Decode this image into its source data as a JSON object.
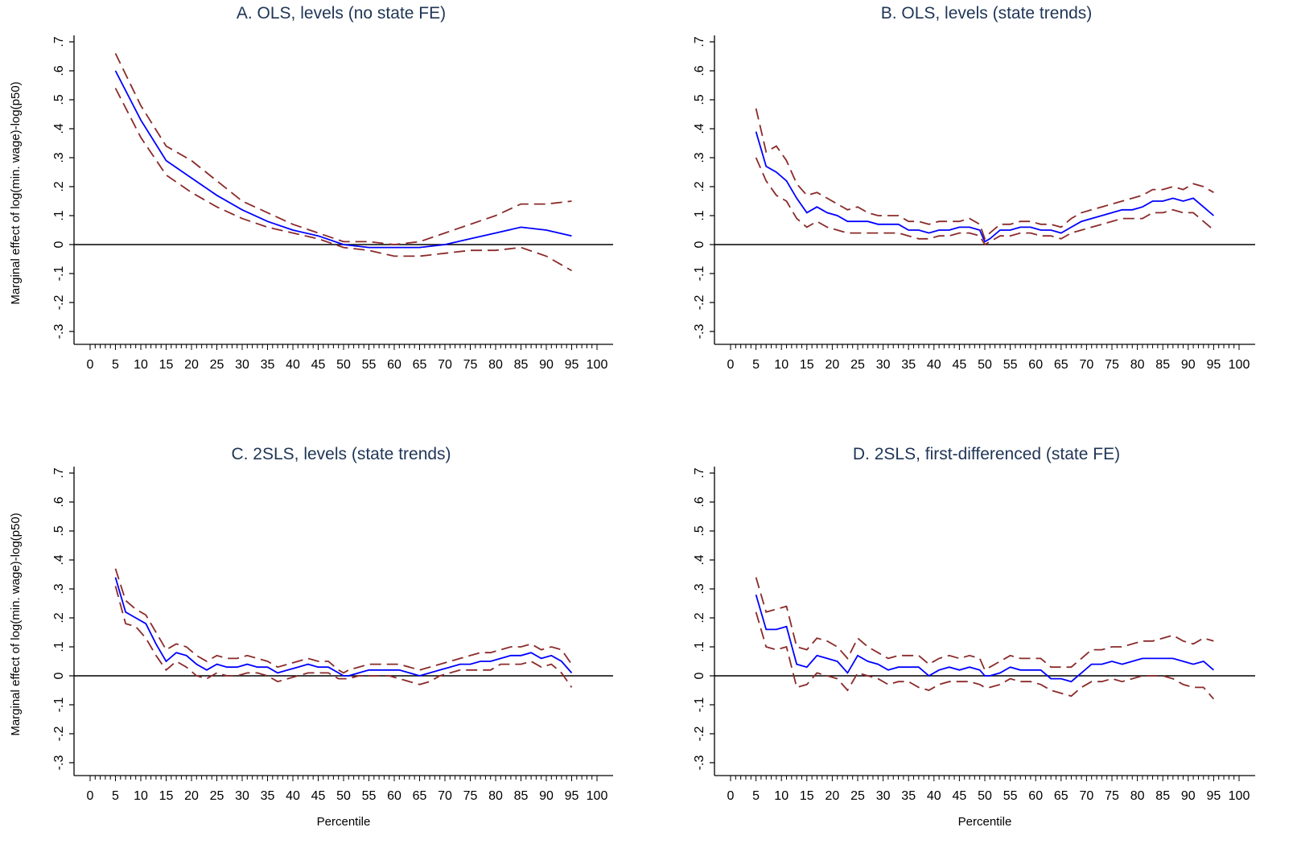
{
  "colors": {
    "estimate": "#0000ff",
    "ci": "#8b2a2a",
    "axis": "#000000",
    "title": "#1f3556"
  },
  "chart_data": [
    {
      "type": "line",
      "title": "A. OLS, levels (no state FE)",
      "xlabel": "",
      "ylabel": "Marginal effect of log(min. wage)-log(p50)",
      "xlim": [
        0,
        100
      ],
      "ylim": [
        -0.3,
        0.7
      ],
      "xtick_labels": [
        "0",
        "5",
        "10",
        "15",
        "20",
        "25",
        "30",
        "35",
        "40",
        "45",
        "50",
        "55",
        "60",
        "65",
        "70",
        "75",
        "80",
        "85",
        "90",
        "95",
        "100"
      ],
      "ytick_labels": [
        "-.3",
        "-.2",
        "-.1",
        "0",
        ".1",
        ".2",
        ".3",
        ".4",
        ".5",
        ".6",
        ".7"
      ],
      "reference_line": 0,
      "x": [
        5,
        10,
        15,
        20,
        25,
        30,
        35,
        40,
        45,
        50,
        55,
        60,
        65,
        70,
        75,
        80,
        85,
        90,
        95
      ],
      "series": [
        {
          "role": "estimate",
          "values": [
            0.6,
            0.43,
            0.29,
            0.23,
            0.17,
            0.12,
            0.08,
            0.05,
            0.03,
            0.0,
            -0.01,
            -0.01,
            -0.01,
            0.0,
            0.02,
            0.04,
            0.06,
            0.05,
            0.03
          ]
        },
        {
          "role": "upper",
          "values": [
            0.66,
            0.48,
            0.34,
            0.29,
            0.22,
            0.15,
            0.11,
            0.07,
            0.04,
            0.01,
            0.01,
            0.0,
            0.01,
            0.04,
            0.07,
            0.1,
            0.14,
            0.14,
            0.15
          ]
        },
        {
          "role": "lower",
          "values": [
            0.54,
            0.37,
            0.24,
            0.18,
            0.13,
            0.09,
            0.06,
            0.04,
            0.02,
            -0.01,
            -0.02,
            -0.04,
            -0.04,
            -0.03,
            -0.02,
            -0.02,
            -0.01,
            -0.04,
            -0.09
          ]
        }
      ]
    },
    {
      "type": "line",
      "title": "B. OLS, levels (state trends)",
      "xlabel": "",
      "ylabel": "",
      "xlim": [
        0,
        100
      ],
      "ylim": [
        -0.3,
        0.7
      ],
      "xtick_labels": [
        "0",
        "5",
        "10",
        "15",
        "20",
        "25",
        "30",
        "35",
        "40",
        "45",
        "50",
        "55",
        "60",
        "65",
        "70",
        "75",
        "80",
        "85",
        "90",
        "95",
        "100"
      ],
      "ytick_labels": [
        "-.3",
        "-.2",
        "-.1",
        "0",
        ".1",
        ".2",
        ".3",
        ".4",
        ".5",
        ".6",
        ".7"
      ],
      "reference_line": 0,
      "x": [
        5,
        7,
        9,
        11,
        13,
        15,
        17,
        19,
        21,
        23,
        25,
        27,
        29,
        31,
        33,
        35,
        37,
        39,
        41,
        43,
        45,
        47,
        49,
        50,
        51,
        53,
        55,
        57,
        59,
        61,
        63,
        65,
        67,
        69,
        71,
        73,
        75,
        77,
        79,
        81,
        83,
        85,
        87,
        89,
        91,
        93,
        95
      ],
      "series": [
        {
          "role": "estimate",
          "values": [
            0.39,
            0.27,
            0.25,
            0.22,
            0.16,
            0.11,
            0.13,
            0.11,
            0.1,
            0.08,
            0.08,
            0.08,
            0.07,
            0.07,
            0.07,
            0.05,
            0.05,
            0.04,
            0.05,
            0.05,
            0.06,
            0.06,
            0.05,
            0.01,
            0.02,
            0.05,
            0.05,
            0.06,
            0.06,
            0.05,
            0.05,
            0.04,
            0.06,
            0.08,
            0.09,
            0.1,
            0.11,
            0.12,
            0.12,
            0.13,
            0.15,
            0.15,
            0.16,
            0.15,
            0.16,
            0.13,
            0.1
          ]
        },
        {
          "role": "upper",
          "values": [
            0.47,
            0.32,
            0.34,
            0.29,
            0.21,
            0.17,
            0.18,
            0.16,
            0.14,
            0.12,
            0.13,
            0.11,
            0.1,
            0.1,
            0.1,
            0.08,
            0.08,
            0.07,
            0.08,
            0.08,
            0.08,
            0.09,
            0.07,
            0.02,
            0.04,
            0.07,
            0.07,
            0.08,
            0.08,
            0.07,
            0.07,
            0.06,
            0.09,
            0.11,
            0.12,
            0.13,
            0.14,
            0.15,
            0.16,
            0.17,
            0.19,
            0.19,
            0.2,
            0.19,
            0.21,
            0.2,
            0.18
          ]
        },
        {
          "role": "lower",
          "values": [
            0.3,
            0.22,
            0.17,
            0.15,
            0.09,
            0.06,
            0.08,
            0.06,
            0.05,
            0.04,
            0.04,
            0.04,
            0.04,
            0.04,
            0.04,
            0.03,
            0.02,
            0.02,
            0.03,
            0.03,
            0.04,
            0.04,
            0.03,
            0.0,
            0.01,
            0.03,
            0.03,
            0.04,
            0.04,
            0.03,
            0.03,
            0.02,
            0.04,
            0.05,
            0.06,
            0.07,
            0.08,
            0.09,
            0.09,
            0.09,
            0.11,
            0.11,
            0.12,
            0.11,
            0.11,
            0.08,
            0.05
          ]
        }
      ]
    },
    {
      "type": "line",
      "title": "C. 2SLS, levels (state trends)",
      "xlabel": "Percentile",
      "ylabel": "Marginal effect of log(min. wage)-log(p50)",
      "xlim": [
        0,
        100
      ],
      "ylim": [
        -0.3,
        0.7
      ],
      "xtick_labels": [
        "0",
        "5",
        "10",
        "15",
        "20",
        "25",
        "30",
        "35",
        "40",
        "45",
        "50",
        "55",
        "60",
        "65",
        "70",
        "75",
        "80",
        "85",
        "90",
        "95",
        "100"
      ],
      "ytick_labels": [
        "-.3",
        "-.2",
        "-.1",
        "0",
        ".1",
        ".2",
        ".3",
        ".4",
        ".5",
        ".6",
        ".7"
      ],
      "reference_line": 0,
      "x": [
        5,
        7,
        9,
        11,
        13,
        15,
        17,
        19,
        21,
        23,
        25,
        27,
        29,
        31,
        33,
        35,
        37,
        39,
        41,
        43,
        45,
        47,
        49,
        50,
        51,
        53,
        55,
        57,
        59,
        61,
        63,
        65,
        67,
        69,
        71,
        73,
        75,
        77,
        79,
        81,
        83,
        85,
        87,
        89,
        91,
        93,
        95
      ],
      "series": [
        {
          "role": "estimate",
          "values": [
            0.34,
            0.22,
            0.2,
            0.18,
            0.11,
            0.05,
            0.08,
            0.07,
            0.04,
            0.02,
            0.04,
            0.03,
            0.03,
            0.04,
            0.03,
            0.03,
            0.01,
            0.02,
            0.03,
            0.04,
            0.03,
            0.03,
            0.01,
            0.0,
            0.0,
            0.01,
            0.02,
            0.02,
            0.02,
            0.02,
            0.01,
            0.0,
            0.01,
            0.02,
            0.03,
            0.04,
            0.04,
            0.05,
            0.05,
            0.06,
            0.07,
            0.07,
            0.08,
            0.06,
            0.07,
            0.05,
            0.01
          ]
        },
        {
          "role": "upper",
          "values": [
            0.37,
            0.26,
            0.23,
            0.21,
            0.15,
            0.09,
            0.11,
            0.1,
            0.07,
            0.05,
            0.07,
            0.06,
            0.06,
            0.07,
            0.06,
            0.05,
            0.03,
            0.04,
            0.05,
            0.06,
            0.05,
            0.05,
            0.02,
            0.01,
            0.02,
            0.03,
            0.04,
            0.04,
            0.04,
            0.04,
            0.03,
            0.02,
            0.03,
            0.04,
            0.05,
            0.06,
            0.07,
            0.08,
            0.08,
            0.09,
            0.1,
            0.1,
            0.11,
            0.09,
            0.1,
            0.09,
            0.04
          ]
        },
        {
          "role": "lower",
          "values": [
            0.31,
            0.18,
            0.17,
            0.13,
            0.07,
            0.02,
            0.05,
            0.03,
            0.0,
            -0.01,
            0.01,
            0.0,
            0.0,
            0.01,
            0.01,
            0.0,
            -0.02,
            -0.01,
            0.0,
            0.01,
            0.01,
            0.01,
            -0.01,
            -0.01,
            -0.01,
            0.0,
            0.0,
            0.0,
            0.0,
            -0.01,
            -0.02,
            -0.03,
            -0.02,
            0.0,
            0.01,
            0.02,
            0.02,
            0.02,
            0.02,
            0.04,
            0.04,
            0.04,
            0.05,
            0.03,
            0.04,
            0.01,
            -0.04
          ]
        }
      ]
    },
    {
      "type": "line",
      "title": "D. 2SLS, first-differenced (state FE)",
      "xlabel": "Percentile",
      "ylabel": "",
      "xlim": [
        0,
        100
      ],
      "ylim": [
        -0.3,
        0.7
      ],
      "xtick_labels": [
        "0",
        "5",
        "10",
        "15",
        "20",
        "25",
        "30",
        "35",
        "40",
        "45",
        "50",
        "55",
        "60",
        "65",
        "70",
        "75",
        "80",
        "85",
        "90",
        "95",
        "100"
      ],
      "ytick_labels": [
        "-.3",
        "-.2",
        "-.1",
        "0",
        ".1",
        ".2",
        ".3",
        ".4",
        ".5",
        ".6",
        ".7"
      ],
      "reference_line": 0,
      "x": [
        5,
        7,
        9,
        11,
        13,
        15,
        17,
        19,
        21,
        23,
        25,
        27,
        29,
        31,
        33,
        35,
        37,
        39,
        41,
        43,
        45,
        47,
        49,
        50,
        51,
        53,
        55,
        57,
        59,
        61,
        63,
        65,
        67,
        69,
        71,
        73,
        75,
        77,
        79,
        81,
        83,
        85,
        87,
        89,
        91,
        93,
        95
      ],
      "series": [
        {
          "role": "estimate",
          "values": [
            0.28,
            0.16,
            0.16,
            0.17,
            0.04,
            0.03,
            0.07,
            0.06,
            0.05,
            0.01,
            0.07,
            0.05,
            0.04,
            0.02,
            0.03,
            0.03,
            0.03,
            0.0,
            0.02,
            0.03,
            0.02,
            0.03,
            0.02,
            0.0,
            0.0,
            0.01,
            0.03,
            0.02,
            0.02,
            0.02,
            -0.01,
            -0.01,
            -0.02,
            0.01,
            0.04,
            0.04,
            0.05,
            0.04,
            0.05,
            0.06,
            0.06,
            0.06,
            0.06,
            0.05,
            0.04,
            0.05,
            0.02
          ]
        },
        {
          "role": "upper",
          "values": [
            0.34,
            0.22,
            0.23,
            0.24,
            0.1,
            0.09,
            0.13,
            0.12,
            0.1,
            0.06,
            0.13,
            0.1,
            0.08,
            0.06,
            0.07,
            0.07,
            0.07,
            0.04,
            0.06,
            0.07,
            0.06,
            0.07,
            0.06,
            0.02,
            0.03,
            0.05,
            0.07,
            0.06,
            0.06,
            0.06,
            0.03,
            0.03,
            0.03,
            0.06,
            0.09,
            0.09,
            0.1,
            0.1,
            0.11,
            0.12,
            0.12,
            0.13,
            0.14,
            0.12,
            0.11,
            0.13,
            0.12
          ]
        },
        {
          "role": "lower",
          "values": [
            0.22,
            0.1,
            0.09,
            0.1,
            -0.04,
            -0.03,
            0.01,
            0.0,
            -0.01,
            -0.05,
            0.01,
            0.0,
            -0.01,
            -0.03,
            -0.02,
            -0.02,
            -0.04,
            -0.05,
            -0.03,
            -0.02,
            -0.02,
            -0.02,
            -0.03,
            -0.04,
            -0.04,
            -0.03,
            -0.01,
            -0.02,
            -0.02,
            -0.03,
            -0.05,
            -0.06,
            -0.07,
            -0.04,
            -0.02,
            -0.02,
            -0.01,
            -0.02,
            -0.01,
            0.0,
            0.0,
            0.0,
            -0.01,
            -0.03,
            -0.04,
            -0.04,
            -0.08
          ]
        }
      ]
    }
  ]
}
